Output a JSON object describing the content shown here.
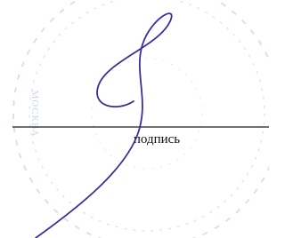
{
  "stamp": {
    "text": "МОСКВА"
  },
  "signature_line": {
    "label": "подпись"
  }
}
